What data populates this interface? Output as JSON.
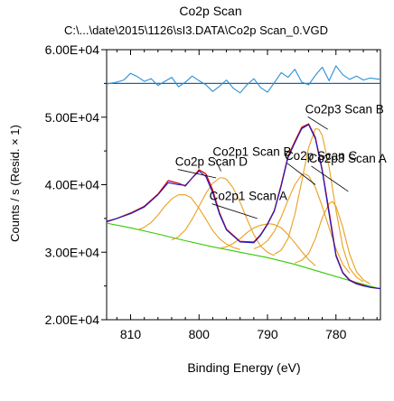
{
  "chart_data": {
    "type": "line",
    "title": "Co2p Scan",
    "subtitle": "C:\\...\\date\\2015\\1126\\sI3.DATA\\Co2p Scan_0.VGD",
    "xlabel": "Binding Energy (eV)",
    "ylabel": "Counts / s  (Resid. × 1)",
    "xlim": [
      813.5,
      773.5
    ],
    "ylim": [
      20000,
      60000
    ],
    "x_reversed": true,
    "x_ticks": [
      810,
      800,
      790,
      780
    ],
    "x_tick_labels": [
      "810",
      "800",
      "790",
      "780"
    ],
    "y_ticks": [
      20000,
      30000,
      40000,
      50000,
      60000
    ],
    "y_tick_labels": [
      "2.00E+04",
      "3.00E+04",
      "4.00E+04",
      "5.00E+04",
      "6.00E+04"
    ],
    "residual_baseline": 55000,
    "grid": false,
    "colors": {
      "data": "#cc0000",
      "envelope": "#1a1acc",
      "components": "#e8a020",
      "background": "#33cc00",
      "residual": "#2a8fd8",
      "axis": "#000000"
    },
    "annotations": [
      {
        "text": "Co2p3 Scan B",
        "x": 784.5,
        "y": 50600,
        "target_x": 781.2,
        "target_y": 48200
      },
      {
        "text": "Co2p1 Scan B",
        "x": 798.0,
        "y": 44300,
        "target_x": 796.8,
        "target_y": 42000
      },
      {
        "text": "Co2p Scan D",
        "x": 803.5,
        "y": 42800,
        "target_x": 797.5,
        "target_y": 41000
      },
      {
        "text": "Co2p Scan C",
        "x": 787.5,
        "y": 43700,
        "target_x": 783.0,
        "target_y": 40000
      },
      {
        "text": "Co2p3 Scan A",
        "x": 784.0,
        "y": 43300,
        "target_x": 778.2,
        "target_y": 39000
      },
      {
        "text": "Co2p1 Scan A",
        "x": 798.5,
        "y": 37700,
        "target_x": 791.5,
        "target_y": 35000
      }
    ],
    "series": [
      {
        "role": "data",
        "x": [
          813.5,
          812,
          810,
          808,
          806,
          804.5,
          803,
          802,
          801,
          800,
          799,
          798,
          797,
          796,
          794,
          792,
          791,
          790,
          789,
          788,
          787,
          786,
          785,
          784,
          783,
          782,
          781,
          780,
          779,
          778,
          777,
          776,
          775,
          773.5
        ],
        "values": [
          34500,
          35000,
          35800,
          36800,
          38600,
          40600,
          40200,
          39800,
          41000,
          42200,
          41600,
          39200,
          35800,
          33400,
          31600,
          31500,
          32600,
          34200,
          36200,
          40000,
          44200,
          46400,
          48500,
          49000,
          47000,
          42200,
          36000,
          29600,
          27000,
          25900,
          25400,
          25100,
          24800,
          24600
        ]
      },
      {
        "role": "envelope",
        "x": [
          813.5,
          812,
          810,
          808,
          806,
          804.5,
          803,
          802,
          801,
          800,
          799,
          798,
          797,
          796,
          794,
          792,
          791,
          790,
          789,
          788,
          787,
          786,
          785,
          784,
          783,
          782,
          781,
          780,
          779,
          778,
          777,
          776,
          775,
          773.5
        ],
        "values": [
          34600,
          35000,
          35700,
          36700,
          38500,
          40300,
          40000,
          39900,
          41000,
          42000,
          41200,
          38800,
          35600,
          33300,
          31500,
          31400,
          32500,
          34100,
          36100,
          39800,
          44000,
          46200,
          48300,
          48900,
          46800,
          42000,
          35600,
          29400,
          26900,
          25800,
          25300,
          25000,
          24800,
          24600
        ]
      },
      {
        "role": "background",
        "x": [
          813.5,
          810,
          806,
          802,
          798,
          794,
          790,
          786,
          782,
          778,
          774,
          773.5
        ],
        "values": [
          34300,
          33600,
          32700,
          31700,
          30800,
          30000,
          29200,
          28200,
          27000,
          25800,
          24700,
          24600
        ]
      },
      {
        "role": "component",
        "name": "Co2p1 Scan B",
        "center": 796.5,
        "height": 10300,
        "fwhm": 4.8,
        "x": [
          804,
          803,
          802,
          801,
          800,
          799,
          798,
          797,
          796.5,
          796,
          795,
          794,
          793,
          792,
          791,
          790,
          789
        ],
        "values": [
          31800,
          32300,
          33300,
          34900,
          36800,
          38700,
          40200,
          41000,
          41000,
          40800,
          39500,
          37400,
          34900,
          32600,
          30900,
          30000,
          29500
        ]
      },
      {
        "role": "component",
        "name": "Co2p Scan D",
        "center": 801.2,
        "height": 6600,
        "fwhm": 4.2,
        "x": [
          809,
          808,
          807,
          806,
          805,
          804,
          803,
          802,
          801.2,
          800,
          799,
          798,
          797,
          796,
          795,
          794
        ],
        "values": [
          33300,
          33700,
          34400,
          35500,
          36800,
          37900,
          38500,
          38500,
          38100,
          36500,
          34900,
          33200,
          32000,
          31200,
          30700,
          30400
        ]
      },
      {
        "role": "component",
        "name": "Co2p1 Scan A",
        "center": 789.5,
        "height": 5300,
        "fwhm": 4.6,
        "x": [
          797,
          796,
          795,
          794,
          793,
          792,
          791,
          790,
          789.5,
          789,
          788,
          787,
          786,
          785,
          784,
          783
        ],
        "values": [
          30600,
          30800,
          31300,
          32000,
          32900,
          33600,
          34000,
          34200,
          34200,
          34100,
          33600,
          32600,
          31400,
          30100,
          28900,
          28000
        ]
      },
      {
        "role": "component",
        "name": "Co2p Scan C",
        "center": 784.6,
        "height": 13700,
        "fwhm": 4.4,
        "x": [
          792,
          791,
          790,
          789,
          788,
          787,
          786,
          785,
          784.6,
          784,
          783,
          782,
          781,
          780,
          779,
          778
        ],
        "values": [
          30500,
          30900,
          31700,
          33100,
          35200,
          37700,
          40000,
          41500,
          41600,
          41300,
          39600,
          36800,
          33600,
          30500,
          28200,
          26900
        ]
      },
      {
        "role": "component",
        "name": "Co2p3 Scan A",
        "center": 780.5,
        "height": 10500,
        "fwhm": 2.6,
        "x": [
          786,
          785,
          784,
          783,
          782,
          781,
          780.5,
          780,
          779,
          778,
          777,
          776,
          775
        ],
        "values": [
          28400,
          28800,
          29800,
          32000,
          35100,
          37200,
          37500,
          36800,
          33700,
          29700,
          27100,
          25900,
          25300
        ]
      },
      {
        "role": "component",
        "name": "Co2p3 Scan B",
        "center": 782.5,
        "height": 21000,
        "fwhm": 2.8,
        "x": [
          789,
          788,
          787,
          786,
          785,
          784,
          783,
          782.5,
          782,
          781,
          780,
          779,
          778,
          777,
          776
        ],
        "values": [
          29700,
          30300,
          32000,
          35600,
          40500,
          45500,
          48300,
          48200,
          47300,
          42600,
          36200,
          30800,
          27600,
          26300,
          25600
        ]
      },
      {
        "role": "residual",
        "x": [
          813.5,
          812,
          811,
          810,
          809,
          808,
          807,
          806,
          805,
          804,
          803,
          802,
          801,
          800,
          799,
          798,
          797,
          796,
          795,
          794,
          793,
          792,
          791,
          790,
          789,
          788,
          787,
          786,
          785,
          784,
          783,
          782,
          781,
          780,
          779,
          778,
          777,
          776,
          775,
          773.5
        ],
        "values": [
          54900,
          55200,
          55500,
          56500,
          56000,
          55300,
          55700,
          54700,
          55300,
          55900,
          54500,
          55200,
          56100,
          55400,
          54800,
          53800,
          54600,
          55500,
          54300,
          53600,
          54800,
          55700,
          54400,
          53700,
          55100,
          56600,
          55900,
          57100,
          55200,
          54800,
          56200,
          57400,
          55400,
          57600,
          56300,
          55600,
          56100,
          55500,
          55800,
          55600
        ]
      }
    ]
  }
}
